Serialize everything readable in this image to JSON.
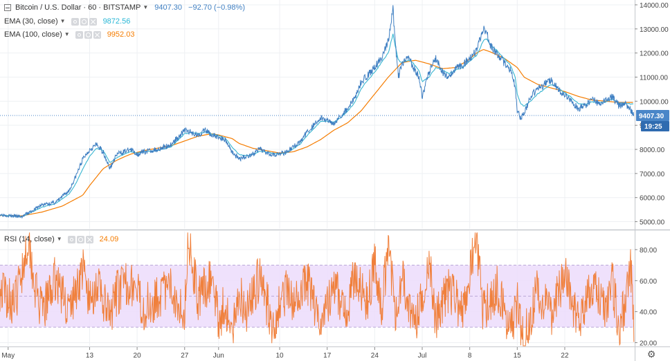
{
  "header": {
    "symbol": "Bitcoin / U.S. Dollar · 60 · BITSTAMP",
    "last": "9407.30",
    "change": "−92.70 (−0.98%)"
  },
  "indicators": {
    "ema30": {
      "label": "EMA (30, close)",
      "value": "9872.56",
      "color": "#2ab7d6"
    },
    "ema100": {
      "label": "EMA (100, close)",
      "value": "9952.03",
      "color": "#f57c00"
    },
    "rsi": {
      "label": "RSI (14, close)",
      "value": "24.09",
      "color": "#f57c00"
    }
  },
  "colors": {
    "price": "#3f7fc2",
    "ema30": "#36b5d0",
    "ema100": "#f57c00",
    "rsi": "#f0803c",
    "rsi_band": "#ecdcfb",
    "price_tag": "#4a86c8",
    "time_tag": "#2f6bb0"
  },
  "price_tag": {
    "value": "9407.30",
    "countdown": "19:25"
  },
  "chart_data": [
    {
      "type": "line",
      "title": "Bitcoin / U.S. Dollar · 60 · BITSTAMP",
      "x_unit": "days since May 1",
      "x_range": [
        -1.2,
        92.2
      ],
      "ylim": [
        4700,
        14200
      ],
      "yticks": [
        5000,
        6000,
        7000,
        8000,
        9000,
        10000,
        11000,
        12000,
        13000,
        14000
      ],
      "ytick_labels": [
        "5000.00",
        "6000.00",
        "7000.00",
        "8000.00",
        "9000.00",
        "10000.00",
        "11000.00",
        "12000.00",
        "13000.00",
        "14000.00"
      ],
      "xticks": [
        {
          "day": 0,
          "label": "May"
        },
        {
          "day": 12,
          "label": "13"
        },
        {
          "day": 19,
          "label": "20"
        },
        {
          "day": 26,
          "label": "27"
        },
        {
          "day": 31,
          "label": "Jun"
        },
        {
          "day": 40,
          "label": "10"
        },
        {
          "day": 47,
          "label": "17"
        },
        {
          "day": 54,
          "label": "24"
        },
        {
          "day": 61,
          "label": "Jul"
        },
        {
          "day": 68,
          "label": "8"
        },
        {
          "day": 75,
          "label": "15"
        },
        {
          "day": 82,
          "label": "22"
        }
      ],
      "series": [
        {
          "name": "BTC/USD",
          "x": [
            -1.2,
            2,
            5,
            7,
            9,
            10,
            11,
            12,
            13,
            14,
            15,
            16,
            17,
            18,
            19,
            20,
            22,
            24,
            26,
            27,
            28,
            29,
            30,
            31,
            32,
            33,
            34,
            35,
            36,
            37,
            38,
            39,
            40,
            41,
            42,
            43,
            44,
            45,
            46,
            47,
            48,
            49,
            50,
            51,
            52,
            53,
            54,
            55,
            56,
            56.7,
            57,
            57.5,
            58,
            59,
            59.6,
            60.5,
            61,
            62,
            63,
            64,
            65,
            66,
            67,
            68,
            69,
            70,
            70.5,
            71,
            72,
            73,
            74,
            74.7,
            75,
            75.5,
            76,
            77,
            78,
            79,
            80,
            80.5,
            81,
            82,
            83,
            84,
            85,
            86,
            87,
            88,
            89,
            90,
            91,
            92.2
          ],
          "y": [
            5300,
            5200,
            5700,
            5800,
            6300,
            6900,
            7600,
            8000,
            8200,
            7900,
            7200,
            7800,
            7900,
            8000,
            7800,
            7900,
            8000,
            8200,
            8800,
            8700,
            8600,
            8800,
            8600,
            8500,
            8400,
            7900,
            7600,
            7700,
            7800,
            8000,
            7900,
            7800,
            7800,
            7900,
            8100,
            8300,
            8700,
            9000,
            9300,
            9200,
            9100,
            9400,
            9700,
            10100,
            10800,
            11100,
            11400,
            11800,
            12500,
            13800,
            12500,
            11000,
            11500,
            11800,
            11500,
            11000,
            10200,
            11200,
            11800,
            11200,
            11000,
            11400,
            11500,
            11800,
            12100,
            13000,
            12900,
            12300,
            12000,
            11600,
            11300,
            10600,
            9600,
            9300,
            9500,
            10200,
            10500,
            10700,
            10900,
            10700,
            10500,
            10200,
            10000,
            9700,
            9800,
            10100,
            9900,
            10000,
            10200,
            9800,
            9900,
            9400
          ]
        },
        {
          "name": "EMA (30, close)",
          "x": [
            -1.2,
            2,
            5,
            7,
            9,
            10,
            11,
            12,
            13,
            14,
            15,
            16,
            17,
            18,
            19,
            20,
            22,
            24,
            26,
            27,
            28,
            29,
            30,
            31,
            32,
            33,
            34,
            35,
            36,
            37,
            38,
            39,
            40,
            41,
            42,
            43,
            44,
            45,
            46,
            47,
            48,
            49,
            50,
            51,
            52,
            53,
            54,
            55,
            56,
            56.7,
            57,
            57.5,
            58,
            59,
            59.6,
            60.5,
            61,
            62,
            63,
            64,
            65,
            66,
            67,
            68,
            69,
            70,
            70.5,
            71,
            72,
            73,
            74,
            74.7,
            75,
            75.5,
            76,
            77,
            78,
            79,
            80,
            80.5,
            81,
            82,
            83,
            84,
            85,
            86,
            87,
            88,
            89,
            90,
            91,
            92.2
          ],
          "y": [
            5280,
            5200,
            5600,
            5750,
            6150,
            6600,
            7200,
            7700,
            8050,
            7950,
            7450,
            7650,
            7800,
            7900,
            7850,
            7900,
            7950,
            8100,
            8650,
            8700,
            8650,
            8720,
            8640,
            8560,
            8460,
            8100,
            7780,
            7740,
            7780,
            7920,
            7900,
            7840,
            7810,
            7870,
            8020,
            8210,
            8560,
            8850,
            9150,
            9180,
            9130,
            9320,
            9580,
            9930,
            10500,
            10900,
            11200,
            11600,
            12000,
            12800,
            12300,
            11700,
            11600,
            11700,
            11600,
            11300,
            10800,
            11000,
            11400,
            11300,
            11150,
            11300,
            11400,
            11650,
            11900,
            12500,
            12600,
            12350,
            12100,
            11800,
            11500,
            11000,
            10300,
            9900,
            9800,
            10000,
            10300,
            10500,
            10700,
            10650,
            10550,
            10350,
            10150,
            9900,
            9850,
            9980,
            9930,
            9970,
            10080,
            9920,
            9910,
            9870
          ]
        },
        {
          "name": "EMA (100, close)",
          "x": [
            -1.2,
            2,
            5,
            8,
            11,
            12,
            14,
            16,
            18,
            20,
            22,
            24,
            26,
            28,
            30,
            31,
            33,
            34,
            36,
            38,
            40,
            42,
            44,
            46,
            48,
            50,
            52,
            54,
            56,
            58,
            60,
            62,
            64,
            66,
            68,
            69,
            70,
            71,
            73,
            75,
            76,
            78,
            80,
            82,
            84,
            86,
            88,
            90,
            92.2
          ],
          "y": [
            5260,
            5240,
            5400,
            5650,
            6100,
            6500,
            7200,
            7550,
            7800,
            7950,
            8050,
            8150,
            8350,
            8550,
            8650,
            8600,
            8450,
            8250,
            8050,
            7950,
            7850,
            7900,
            8100,
            8400,
            8800,
            9100,
            9600,
            10300,
            11000,
            11600,
            11700,
            11550,
            11350,
            11400,
            11750,
            12000,
            12150,
            12050,
            11800,
            11400,
            11000,
            10700,
            10550,
            10400,
            10200,
            10050,
            10000,
            9950,
            9950
          ]
        }
      ]
    },
    {
      "type": "line",
      "title": "RSI (14, close)",
      "x_unit": "days since May 1",
      "x_range": [
        -1.2,
        92.2
      ],
      "ylim": [
        18,
        92
      ],
      "yticks": [
        20,
        40,
        60,
        80
      ],
      "ytick_labels": [
        "20.00",
        "40.00",
        "60.00",
        "80.00"
      ],
      "band": [
        30,
        70
      ],
      "series": [
        {
          "name": "RSI (14, close)",
          "x": [
            -1.2,
            1,
            3,
            4,
            5,
            7,
            9,
            11,
            12,
            13,
            15,
            16,
            18,
            20,
            22,
            24,
            26,
            26.5,
            28,
            30,
            31,
            32,
            33,
            34,
            35,
            37,
            39,
            41,
            42,
            44,
            46,
            48,
            50,
            51,
            53,
            54,
            55,
            56,
            57,
            58,
            60,
            62,
            63,
            65,
            67,
            68,
            69,
            70,
            72,
            74,
            75,
            76,
            78,
            80,
            82,
            84,
            86,
            88,
            89,
            90,
            91,
            91.7,
            92.2
          ],
          "y": [
            55,
            45,
            88,
            55,
            38,
            62,
            40,
            68,
            45,
            58,
            35,
            52,
            60,
            42,
            50,
            55,
            40,
            88,
            48,
            62,
            35,
            45,
            22,
            55,
            40,
            62,
            32,
            55,
            42,
            60,
            35,
            55,
            40,
            65,
            45,
            75,
            38,
            85,
            40,
            62,
            30,
            72,
            35,
            55,
            38,
            65,
            85,
            40,
            55,
            30,
            45,
            22,
            55,
            38,
            62,
            35,
            55,
            42,
            60,
            30,
            45,
            72,
            24
          ]
        }
      ]
    }
  ]
}
